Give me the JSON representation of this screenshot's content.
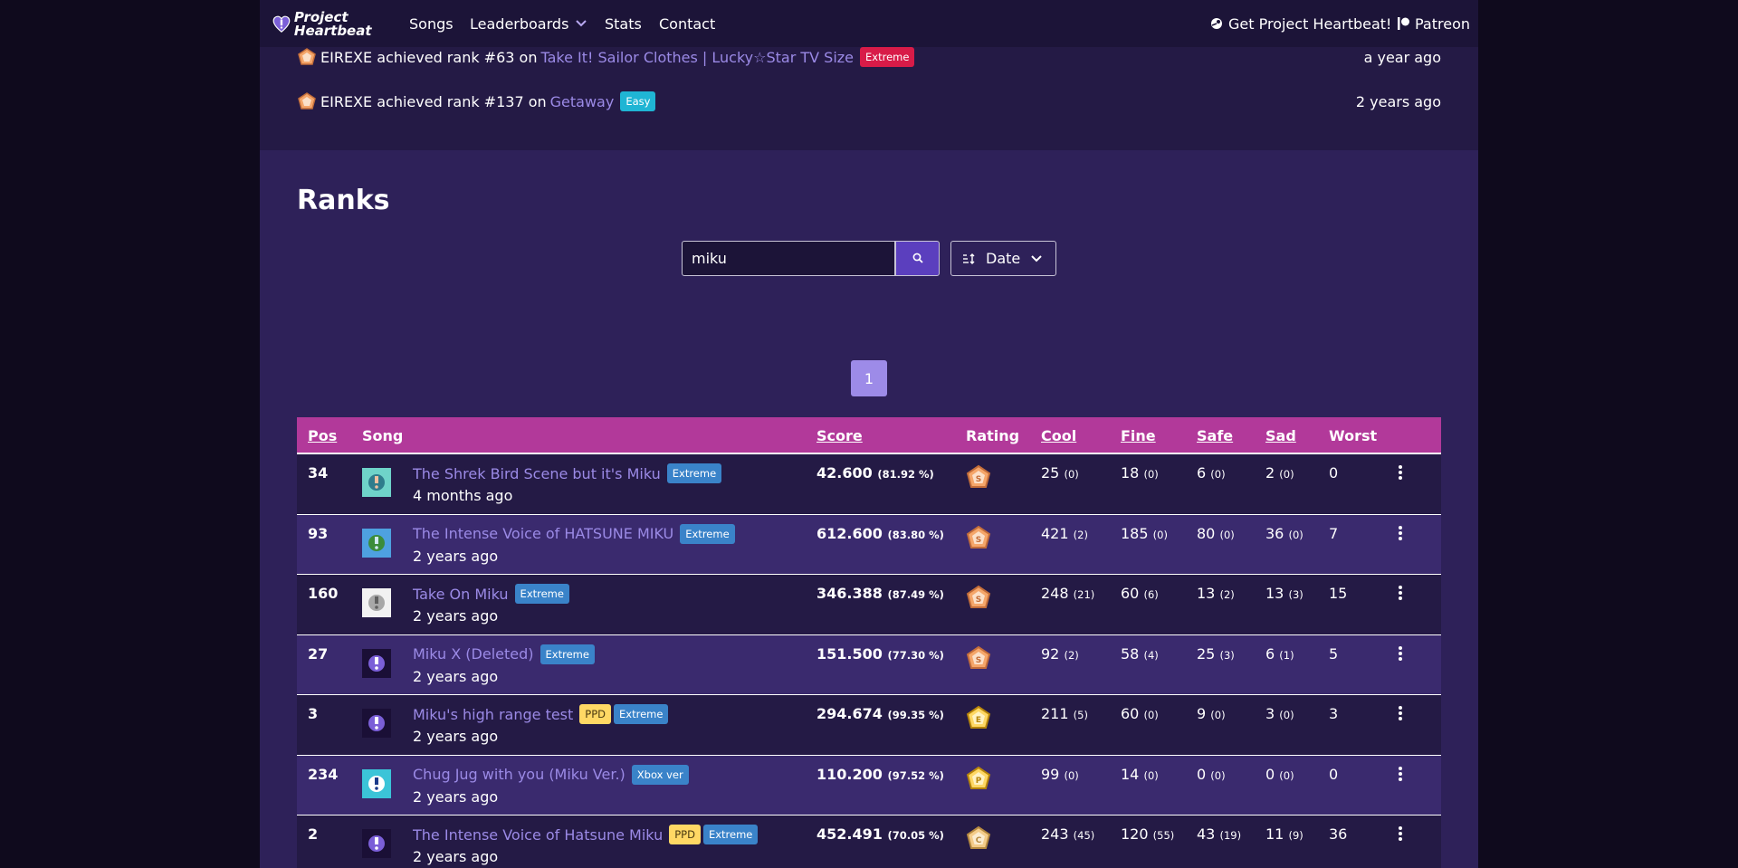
{
  "navbar": {
    "logo_text": "Project Heartbeat",
    "links": [
      "Songs",
      "Leaderboards",
      "Stats",
      "Contact"
    ],
    "get_label": "Get Project Heartbeat!",
    "patreon_label": "Patreon"
  },
  "feed": [
    {
      "user": "EIREXE",
      "text": "achieved rank #63 on",
      "song": "Take It! Sailor Clothes | Lucky☆Star TV Size",
      "badge": "Extreme",
      "time": "a year ago"
    },
    {
      "user": "EIREXE",
      "text": "achieved rank #137 on",
      "song": "Getaway",
      "badge": "Easy",
      "time": "2 years ago"
    }
  ],
  "ranks": {
    "title": "Ranks",
    "search_value": "miku",
    "sort_label": "Date",
    "page": "1",
    "columns": {
      "pos": "Pos",
      "song": "Song",
      "score": "Score",
      "rating": "Rating",
      "cool": "Cool",
      "fine": "Fine",
      "safe": "Safe",
      "sad": "Sad",
      "worst": "Worst"
    },
    "rows": [
      {
        "pos": "34",
        "title": "The Shrek Bird Scene but it's Miku",
        "badges": [
          "Extreme"
        ],
        "time": "4 months ago",
        "score": "42.600",
        "pct": "(81.92 %)",
        "rating": "bronze",
        "cool": "25",
        "cool_d": "(0)",
        "fine": "18",
        "fine_d": "(0)",
        "safe": "6",
        "safe_d": "(0)",
        "sad": "2",
        "sad_d": "(0)",
        "worst": "0"
      },
      {
        "pos": "93",
        "title": "The Intense Voice of HATSUNE MIKU",
        "badges": [
          "Extreme"
        ],
        "time": "2 years ago",
        "score": "612.600",
        "pct": "(83.80 %)",
        "rating": "bronze",
        "cool": "421",
        "cool_d": "(2)",
        "fine": "185",
        "fine_d": "(0)",
        "safe": "80",
        "safe_d": "(0)",
        "sad": "36",
        "sad_d": "(0)",
        "worst": "7"
      },
      {
        "pos": "160",
        "title": "Take On Miku",
        "badges": [
          "Extreme"
        ],
        "time": "2 years ago",
        "score": "346.388",
        "pct": "(87.49 %)",
        "rating": "bronze",
        "cool": "248",
        "cool_d": "(21)",
        "fine": "60",
        "fine_d": "(6)",
        "safe": "13",
        "safe_d": "(2)",
        "sad": "13",
        "sad_d": "(3)",
        "worst": "15"
      },
      {
        "pos": "27",
        "title": "Miku X (Deleted)",
        "badges": [
          "Extreme"
        ],
        "time": "2 years ago",
        "score": "151.500",
        "pct": "(77.30 %)",
        "rating": "bronze",
        "cool": "92",
        "cool_d": "(2)",
        "fine": "58",
        "fine_d": "(4)",
        "safe": "25",
        "safe_d": "(3)",
        "sad": "6",
        "sad_d": "(1)",
        "worst": "5"
      },
      {
        "pos": "3",
        "title": "Miku's high range test",
        "badges": [
          "PPD",
          "Extreme"
        ],
        "time": "2 years ago",
        "score": "294.674",
        "pct": "(99.35 %)",
        "rating": "gold",
        "cool": "211",
        "cool_d": "(5)",
        "fine": "60",
        "fine_d": "(0)",
        "safe": "9",
        "safe_d": "(0)",
        "sad": "3",
        "sad_d": "(0)",
        "worst": "3"
      },
      {
        "pos": "234",
        "title": "Chug Jug with you (Miku Ver.)",
        "badges": [
          "Xbox ver"
        ],
        "time": "2 years ago",
        "score": "110.200",
        "pct": "(97.52 %)",
        "rating": "perfect",
        "cool": "99",
        "cool_d": "(0)",
        "fine": "14",
        "fine_d": "(0)",
        "safe": "0",
        "safe_d": "(0)",
        "sad": "0",
        "sad_d": "(0)",
        "worst": "0"
      },
      {
        "pos": "2",
        "title": "The Intense Voice of Hatsune Miku",
        "badges": [
          "PPD",
          "Extreme"
        ],
        "time": "2 years ago",
        "score": "452.491",
        "pct": "(70.05 %)",
        "rating": "cheap",
        "cool": "243",
        "cool_d": "(45)",
        "fine": "120",
        "fine_d": "(55)",
        "safe": "43",
        "safe_d": "(19)",
        "sad": "11",
        "sad_d": "(9)",
        "worst": "36"
      }
    ]
  }
}
